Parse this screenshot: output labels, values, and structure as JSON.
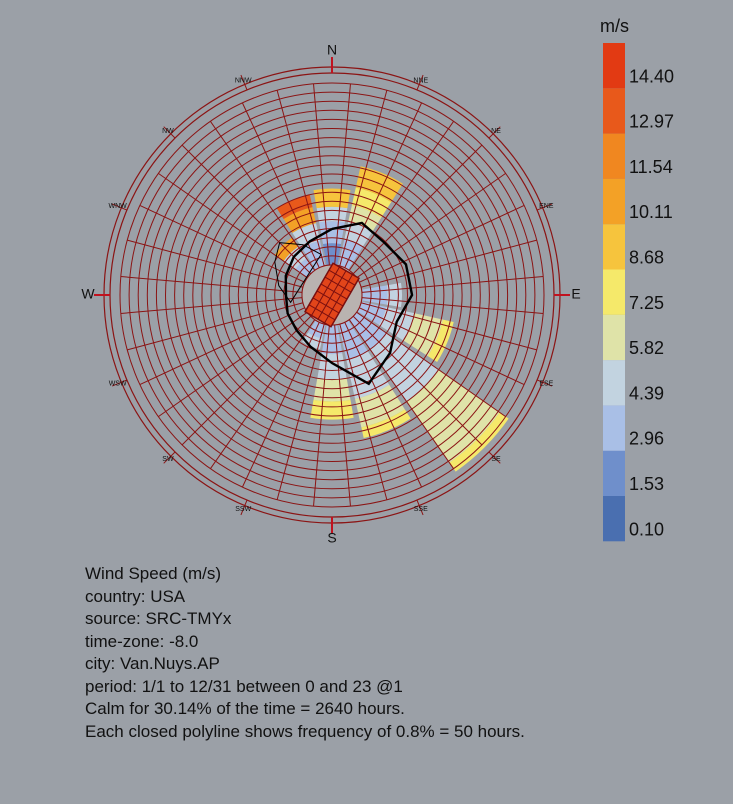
{
  "chart_data": {
    "type": "wind-rose",
    "directions": [
      "N",
      "NNE",
      "NE",
      "ENE",
      "E",
      "ESE",
      "SE",
      "SSE",
      "S",
      "SSW",
      "SW",
      "WSW",
      "W",
      "WNW",
      "NW",
      "NNW"
    ],
    "direction_labels": {
      "N": "N",
      "NNE": "NNE",
      "NE": "NE",
      "ENE": "ENE",
      "E": "E",
      "ESE": "ESE",
      "SE": "SE",
      "SSE": "SSE",
      "S": "S",
      "SSW": "SSW",
      "SW": "SW",
      "WSW": "WSW",
      "W": "W",
      "WNW": "WNW",
      "NW": "NW",
      "NNW": "NNW"
    },
    "speed_bins": [
      {
        "value": "0.10",
        "color": "#4a6fb0"
      },
      {
        "value": "1.53",
        "color": "#6f8fcb"
      },
      {
        "value": "2.96",
        "color": "#a9bfe6"
      },
      {
        "value": "4.39",
        "color": "#c2d3e0"
      },
      {
        "value": "5.82",
        "color": "#dfe3a8"
      },
      {
        "value": "7.25",
        "color": "#f5e96a"
      },
      {
        "value": "8.68",
        "color": "#f6c43d"
      },
      {
        "value": "10.11",
        "color": "#f3a126"
      },
      {
        "value": "11.54",
        "color": "#f08720"
      },
      {
        "value": "12.97",
        "color": "#e8591b"
      },
      {
        "value": "14.40",
        "color": "#e23a13"
      }
    ],
    "legend_unit": "m/s",
    "frequency_rings": 20,
    "grid": true,
    "legend_position": "right",
    "direction_bars": [
      {
        "direction": "N",
        "bands": [
          [
            0.0,
            1.2,
            "#6f8fcb"
          ],
          [
            1.2,
            2.4,
            "#a9bfe6"
          ],
          [
            2.4,
            3.2,
            "#c2d3e0"
          ],
          [
            3.2,
            4.2,
            "#f6c43d"
          ]
        ]
      },
      {
        "direction": "NNE",
        "bands": [
          [
            0.0,
            1.5,
            "#a9bfe6"
          ],
          [
            1.5,
            2.5,
            "#c2d3e0"
          ],
          [
            2.5,
            3.4,
            "#dfe3a8"
          ],
          [
            3.4,
            4.4,
            "#f5e96a"
          ],
          [
            4.4,
            5.6,
            "#f6c43d"
          ]
        ]
      },
      {
        "direction": "NNW",
        "bands": [
          [
            0.0,
            1.4,
            "#a9bfe6"
          ],
          [
            1.4,
            2.4,
            "#c2d3e0"
          ],
          [
            2.4,
            3.3,
            "#f3a126"
          ],
          [
            3.3,
            4.0,
            "#e8591b"
          ]
        ]
      },
      {
        "direction": "NW",
        "bands": [
          [
            0.0,
            0.8,
            "#a9bfe6"
          ],
          [
            0.8,
            1.6,
            "#c2d3e0"
          ],
          [
            1.6,
            2.2,
            "#f3a126"
          ]
        ]
      },
      {
        "direction": "ESE",
        "bands": [
          [
            0.0,
            1.4,
            "#a9bfe6"
          ],
          [
            1.4,
            3.0,
            "#c2d3e0"
          ],
          [
            3.0,
            4.6,
            "#dfe3a8"
          ],
          [
            4.6,
            5.2,
            "#f5e96a"
          ]
        ]
      },
      {
        "direction": "SE",
        "bands": [
          [
            0.0,
            2.0,
            "#a9bfe6"
          ],
          [
            2.0,
            5.5,
            "#c2d3e0"
          ],
          [
            5.5,
            9.6,
            "#dfe3a8"
          ],
          [
            9.6,
            10.2,
            "#f5e96a"
          ]
        ]
      },
      {
        "direction": "SSE",
        "bands": [
          [
            0.0,
            2.0,
            "#a9bfe6"
          ],
          [
            2.0,
            4.2,
            "#c2d3e0"
          ],
          [
            4.2,
            5.8,
            "#dfe3a8"
          ],
          [
            5.8,
            6.4,
            "#f5e96a"
          ]
        ]
      },
      {
        "direction": "S",
        "bands": [
          [
            0.0,
            1.6,
            "#a9bfe6"
          ],
          [
            1.6,
            3.0,
            "#c2d3e0"
          ],
          [
            3.0,
            4.2,
            "#dfe3a8"
          ],
          [
            4.2,
            5.2,
            "#f5e96a"
          ]
        ]
      },
      {
        "direction": "SSW",
        "bands": [
          [
            0.0,
            0.8,
            "#a9bfe6"
          ],
          [
            0.8,
            1.4,
            "#c2d3e0"
          ]
        ]
      },
      {
        "direction": "E",
        "bands": [
          [
            0.0,
            1.4,
            "#a9bfe6"
          ],
          [
            1.4,
            2.2,
            "#c2d3e0"
          ]
        ]
      }
    ]
  },
  "info": {
    "line1": "Wind Speed (m/s)",
    "line2": "country: USA",
    "line3": "source: SRC-TMYx",
    "line4": "time-zone: -8.0",
    "line5": "city: Van.Nuys.AP",
    "line6": "period: 1/1 to 12/31 between 0 and 23 @1",
    "line7": "Calm for 30.14% of the time = 2640 hours.",
    "line8": "Each closed polyline shows frequency of 0.8% = 50 hours."
  },
  "colors": {
    "grid": "#8b1414",
    "background": "#9ba0a7",
    "text": "#111111"
  }
}
